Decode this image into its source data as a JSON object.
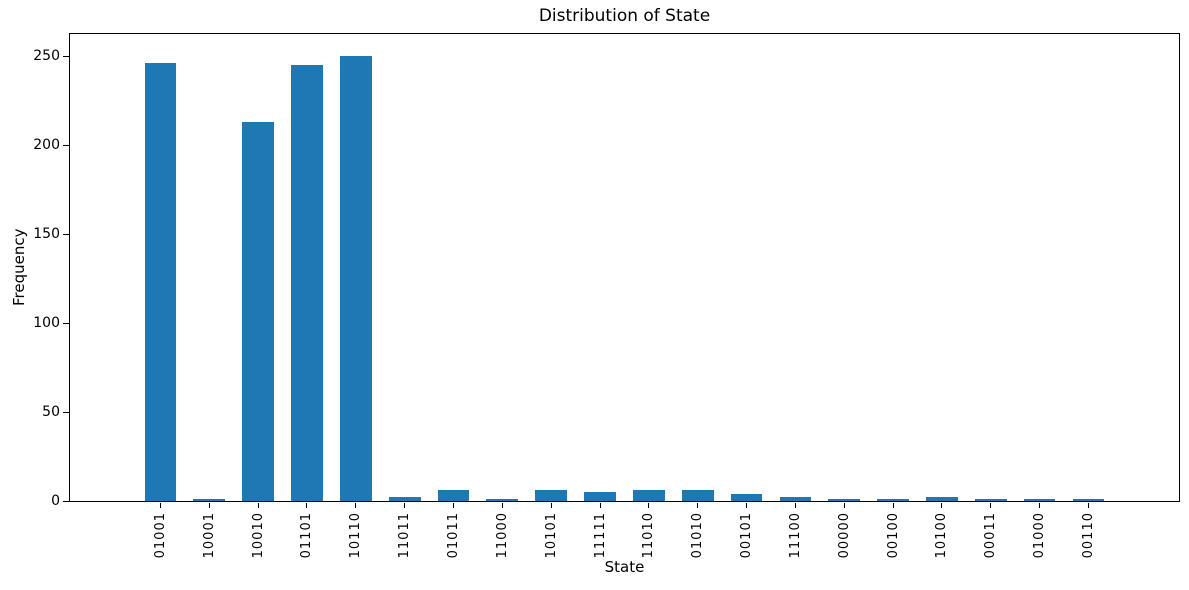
{
  "chart_data": {
    "type": "bar",
    "title": "Distribution of State",
    "xlabel": "State",
    "ylabel": "Frequency",
    "categories": [
      "01001",
      "10001",
      "10010",
      "01101",
      "10110",
      "11011",
      "01011",
      "11000",
      "10101",
      "11111",
      "11010",
      "01010",
      "00101",
      "11100",
      "00000",
      "00100",
      "10100",
      "00011",
      "01000",
      "00110"
    ],
    "values": [
      246,
      1,
      213,
      245,
      250,
      2,
      6,
      1,
      6,
      5,
      6,
      6,
      4,
      2,
      1,
      1,
      2,
      1,
      1,
      1
    ],
    "yticks": [
      0,
      50,
      100,
      150,
      200,
      250
    ],
    "ylim": [
      0,
      262.5
    ],
    "x_tick_rotation": 90,
    "grid": false,
    "legend_position": "none",
    "bar_color": "#1f77b4",
    "axis_color": "#000000",
    "background_color": "#ffffff"
  }
}
